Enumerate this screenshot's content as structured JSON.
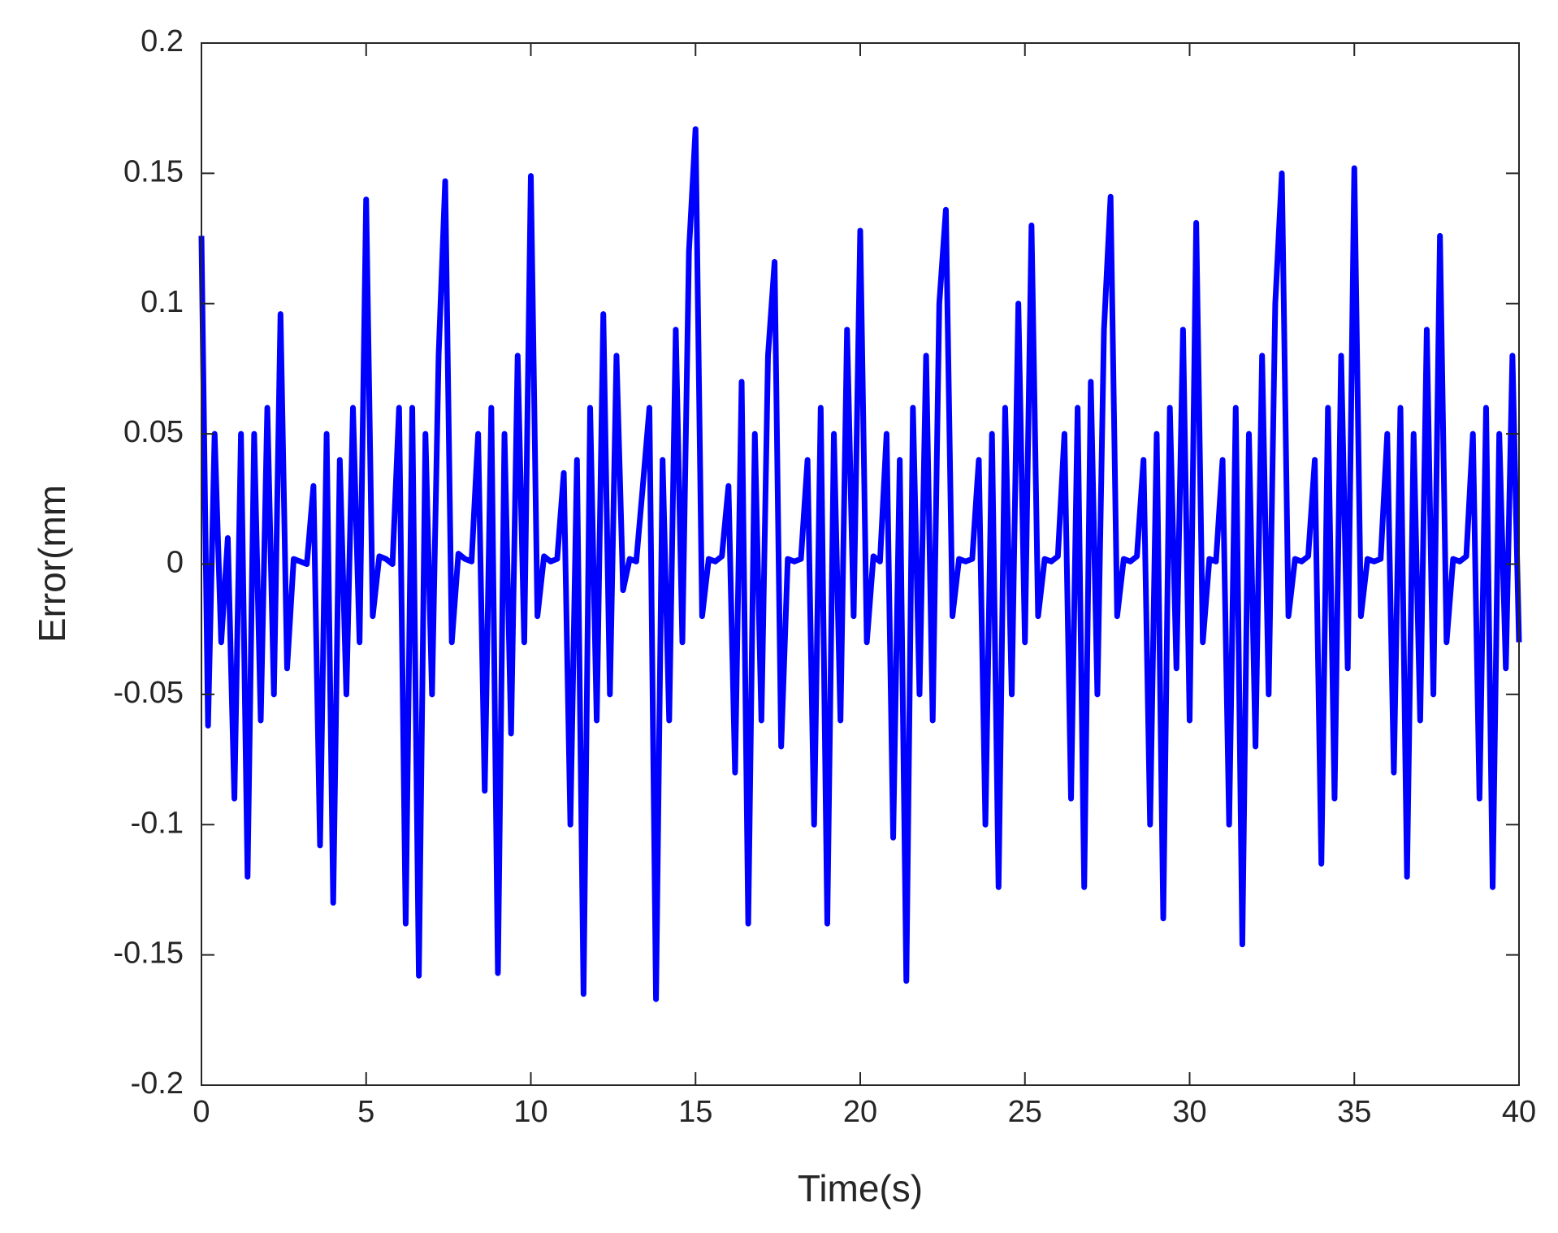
{
  "chart_data": {
    "type": "line",
    "xlabel": "Time(s)",
    "ylabel": "Error(mm",
    "xlim": [
      0,
      40
    ],
    "xticks": [
      0,
      5,
      10,
      15,
      20,
      25,
      30,
      35,
      40
    ],
    "ylim": [
      -0.2,
      0.2
    ],
    "yticks": [
      -0.2,
      -0.15,
      -0.1,
      -0.05,
      0,
      0.05,
      0.1,
      0.15,
      0.2
    ],
    "box": true,
    "x": [
      0,
      0.2,
      0.4,
      0.6,
      0.8,
      1,
      1.2,
      1.4,
      1.6,
      1.8,
      2,
      2.2,
      2.4,
      2.6,
      2.8,
      3,
      3.2,
      3.4,
      3.6,
      3.8,
      4,
      4.2,
      4.4,
      4.6,
      4.8,
      5,
      5.2,
      5.4,
      5.6,
      5.8,
      6,
      6.2,
      6.4,
      6.6,
      6.8,
      7,
      7.2,
      7.4,
      7.6,
      7.8,
      8,
      8.2,
      8.4,
      8.6,
      8.8,
      9,
      9.2,
      9.4,
      9.6,
      9.8,
      10,
      10.2,
      10.4,
      10.6,
      10.8,
      11,
      11.2,
      11.4,
      11.6,
      11.8,
      12,
      12.2,
      12.4,
      12.6,
      12.8,
      13,
      13.2,
      13.4,
      13.6,
      13.8,
      14,
      14.2,
      14.4,
      14.6,
      14.8,
      15,
      15.2,
      15.4,
      15.6,
      15.8,
      16,
      16.2,
      16.4,
      16.6,
      16.8,
      17,
      17.2,
      17.4,
      17.6,
      17.8,
      18,
      18.2,
      18.4,
      18.6,
      18.8,
      19,
      19.2,
      19.4,
      19.6,
      19.8,
      20,
      20.2,
      20.4,
      20.6,
      20.8,
      21,
      21.2,
      21.4,
      21.6,
      21.8,
      22,
      22.2,
      22.4,
      22.6,
      22.8,
      23,
      23.2,
      23.4,
      23.6,
      23.8,
      24,
      24.2,
      24.4,
      24.6,
      24.8,
      25,
      25.2,
      25.4,
      25.6,
      25.8,
      26,
      26.2,
      26.4,
      26.6,
      26.8,
      27,
      27.2,
      27.4,
      27.6,
      27.8,
      28,
      28.2,
      28.4,
      28.6,
      28.8,
      29,
      29.2,
      29.4,
      29.6,
      29.8,
      30,
      30.2,
      30.4,
      30.6,
      30.8,
      31,
      31.2,
      31.4,
      31.6,
      31.8,
      32,
      32.2,
      32.4,
      32.6,
      32.8,
      33,
      33.2,
      33.4,
      33.6,
      33.8,
      34,
      34.2,
      34.4,
      34.6,
      34.8,
      35,
      35.2,
      35.4,
      35.6,
      35.8,
      36,
      36.2,
      36.4,
      36.6,
      36.8,
      37,
      37.2,
      37.4,
      37.6,
      37.8,
      38,
      38.2,
      38.4,
      38.6,
      38.8,
      39,
      39.2,
      39.4,
      39.6,
      39.8,
      40
    ],
    "series": [
      {
        "color": "#0000ff",
        "values": [
          0.126,
          -0.062,
          0.05,
          -0.03,
          0.01,
          -0.09,
          0.05,
          -0.12,
          0.05,
          -0.06,
          0.06,
          -0.05,
          0.096,
          -0.04,
          0.002,
          0.001,
          0.0,
          0.03,
          -0.108,
          0.05,
          -0.13,
          0.04,
          -0.05,
          0.06,
          -0.03,
          0.14,
          -0.02,
          0.003,
          0.002,
          0.0,
          0.06,
          -0.138,
          0.06,
          -0.158,
          0.05,
          -0.05,
          0.08,
          0.147,
          -0.03,
          0.004,
          0.002,
          0.001,
          0.05,
          -0.087,
          0.06,
          -0.157,
          0.05,
          -0.065,
          0.08,
          -0.03,
          0.149,
          -0.02,
          0.003,
          0.001,
          0.002,
          0.035,
          -0.1,
          0.04,
          -0.165,
          0.06,
          -0.06,
          0.096,
          -0.05,
          0.08,
          -0.01,
          0.002,
          0.001,
          0.03,
          0.06,
          -0.167,
          0.04,
          -0.06,
          0.09,
          -0.03,
          0.12,
          0.167,
          -0.02,
          0.002,
          0.001,
          0.003,
          0.03,
          -0.08,
          0.07,
          -0.138,
          0.05,
          -0.06,
          0.08,
          0.116,
          -0.07,
          0.002,
          0.001,
          0.002,
          0.04,
          -0.1,
          0.06,
          -0.138,
          0.05,
          -0.06,
          0.09,
          -0.02,
          0.128,
          -0.03,
          0.003,
          0.001,
          0.05,
          -0.105,
          0.04,
          -0.16,
          0.06,
          -0.05,
          0.08,
          -0.06,
          0.1,
          0.136,
          -0.02,
          0.002,
          0.001,
          0.002,
          0.04,
          -0.1,
          0.05,
          -0.124,
          0.06,
          -0.05,
          0.1,
          -0.03,
          0.13,
          -0.02,
          0.002,
          0.001,
          0.003,
          0.05,
          -0.09,
          0.06,
          -0.124,
          0.07,
          -0.05,
          0.09,
          0.141,
          -0.02,
          0.002,
          0.001,
          0.003,
          0.04,
          -0.1,
          0.05,
          -0.136,
          0.06,
          -0.04,
          0.09,
          -0.06,
          0.131,
          -0.03,
          0.002,
          0.001,
          0.04,
          -0.1,
          0.06,
          -0.146,
          0.05,
          -0.07,
          0.08,
          -0.05,
          0.1,
          0.15,
          -0.02,
          0.002,
          0.001,
          0.003,
          0.04,
          -0.115,
          0.06,
          -0.09,
          0.08,
          -0.04,
          0.152,
          -0.02,
          0.002,
          0.001,
          0.002,
          0.05,
          -0.08,
          0.06,
          -0.12,
          0.05,
          -0.06,
          0.09,
          -0.05,
          0.126,
          -0.03,
          0.002,
          0.001,
          0.003,
          0.05,
          -0.09,
          0.06,
          -0.124,
          0.05,
          -0.04,
          0.08,
          -0.03
        ]
      }
    ]
  }
}
